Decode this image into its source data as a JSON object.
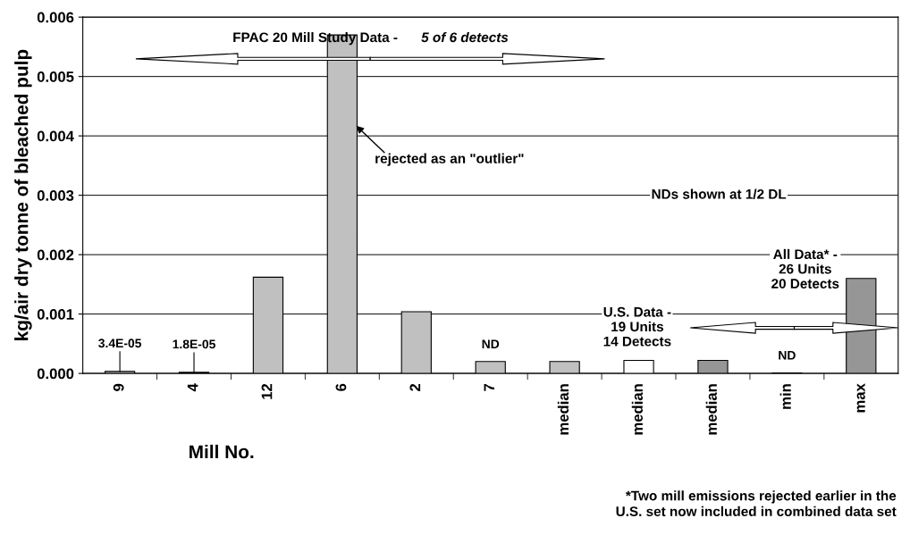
{
  "chart_data": {
    "type": "bar",
    "xlabel": "Mill No.",
    "ylabel": "kg/air dry tonne of bleached pulp",
    "categories": [
      "9",
      "4",
      "12",
      "6",
      "2",
      "7",
      "median",
      "median",
      "median",
      "min",
      "max"
    ],
    "values": [
      3.4e-05,
      1.8e-05,
      0.00162,
      0.0057,
      0.00104,
      0.0002,
      0.0002,
      0.00022,
      0.00022,
      1e-05,
      0.0016
    ],
    "colors": [
      "#c0c0c0",
      "#c0c0c0",
      "#c0c0c0",
      "#c0c0c0",
      "#c0c0c0",
      "#c0c0c0",
      "#c0c0c0",
      "#ffffff",
      "#969696",
      "#969696",
      "#969696"
    ],
    "value_labels": [
      "3.4E-05",
      "1.8E-05",
      null,
      null,
      null,
      "ND",
      null,
      null,
      null,
      "ND",
      null
    ],
    "ylim": [
      0,
      0.006
    ],
    "yticks": [
      {
        "value": 0,
        "label": "0.000"
      },
      {
        "value": 0.001,
        "label": "0.001"
      },
      {
        "value": 0.002,
        "label": "0.002"
      },
      {
        "value": 0.003,
        "label": "0.003"
      },
      {
        "value": 0.004,
        "label": "0.004"
      },
      {
        "value": 0.005,
        "label": "0.005"
      },
      {
        "value": 0.006,
        "label": "0.006"
      }
    ],
    "grid": "y",
    "legend": false,
    "annotations": [
      "FPAC 20 Mill Study Data -  5 of 6 detects",
      "rejected as an \"outlier\"",
      "NDs shown at 1/2 DL",
      "U.S. Data -\n19 Units\n14 Detects",
      "All Data* -\n26 Units\n20 Detects",
      "*Two mill emissions rejected earlier in the\nU.S. set now included in combined data set"
    ]
  }
}
